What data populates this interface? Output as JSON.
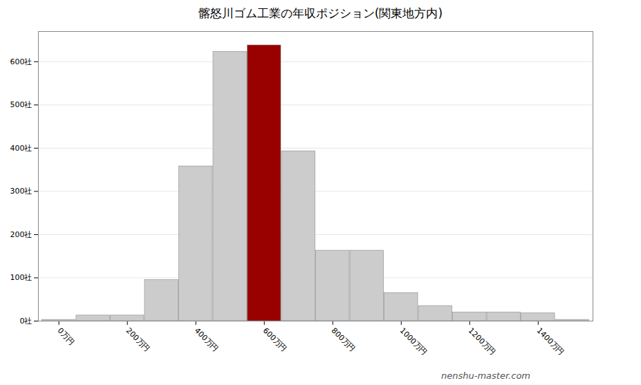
{
  "chart_data": {
    "type": "bar",
    "title": "髂怒川ゴム工業の年収ポジション(関東地方内)",
    "annotations": [
      "nenshu-master.com"
    ],
    "x": [
      0,
      100,
      200,
      300,
      400,
      500,
      600,
      700,
      800,
      900,
      1000,
      1100,
      1200,
      1300,
      1400,
      1500
    ],
    "values": [
      3,
      13,
      13,
      95,
      358,
      623,
      638,
      393,
      163,
      163,
      65,
      35,
      20,
      20,
      18,
      3
    ],
    "colors": [
      "#cccccc",
      "#cccccc",
      "#cccccc",
      "#cccccc",
      "#cccccc",
      "#cccccc",
      "#990000",
      "#cccccc",
      "#cccccc",
      "#cccccc",
      "#cccccc",
      "#cccccc",
      "#cccccc",
      "#cccccc",
      "#cccccc",
      "#cccccc"
    ],
    "xlim": [
      -60,
      1560
    ],
    "xticks": [
      {
        "value": 0,
        "label": "0万円"
      },
      {
        "value": 200,
        "label": "200万円"
      },
      {
        "value": 400,
        "label": "400万円"
      },
      {
        "value": 600,
        "label": "600万円"
      },
      {
        "value": 800,
        "label": "800万円"
      },
      {
        "value": 1000,
        "label": "1000万円"
      },
      {
        "value": 1200,
        "label": "1200万円"
      },
      {
        "value": 1400,
        "label": "1400万円"
      }
    ],
    "ylim": [
      0,
      670
    ],
    "yticks": [
      {
        "value": 0,
        "label": "0社"
      },
      {
        "value": 100,
        "label": "100社"
      },
      {
        "value": 200,
        "label": "200社"
      },
      {
        "value": 300,
        "label": "300社"
      },
      {
        "value": 400,
        "label": "400社"
      },
      {
        "value": 500,
        "label": "500社"
      },
      {
        "value": 600,
        "label": "600社"
      }
    ],
    "grid": true
  }
}
